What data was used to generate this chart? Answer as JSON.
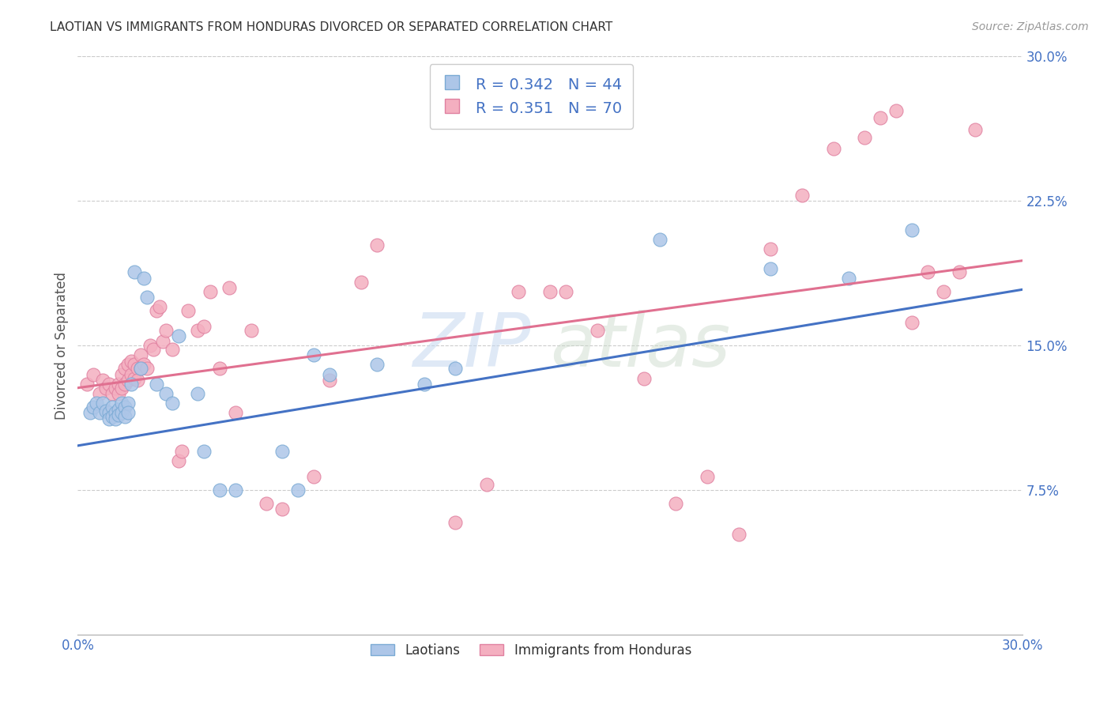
{
  "title": "LAOTIAN VS IMMIGRANTS FROM HONDURAS DIVORCED OR SEPARATED CORRELATION CHART",
  "source": "Source: ZipAtlas.com",
  "ylabel": "Divorced or Separated",
  "xlim": [
    0.0,
    0.3
  ],
  "ylim": [
    0.0,
    0.3
  ],
  "yticks": [
    0.075,
    0.15,
    0.225,
    0.3
  ],
  "laotian_color": "#adc6e8",
  "laotian_edge": "#7aaad4",
  "honduras_color": "#f4afc0",
  "honduras_edge": "#e080a0",
  "trend_laotian": "#4472c4",
  "trend_honduras": "#e07090",
  "R_laotian": 0.342,
  "N_laotian": 44,
  "R_honduras": 0.351,
  "N_honduras": 70,
  "watermark_zip": "ZIP",
  "watermark_atlas": "atlas",
  "background_color": "#ffffff",
  "grid_color": "#cccccc",
  "lao_intercept": 0.098,
  "lao_slope": 0.27,
  "hon_intercept": 0.128,
  "hon_slope": 0.22,
  "laotian_x": [
    0.004,
    0.005,
    0.006,
    0.007,
    0.008,
    0.009,
    0.01,
    0.01,
    0.011,
    0.011,
    0.012,
    0.012,
    0.013,
    0.013,
    0.014,
    0.014,
    0.015,
    0.015,
    0.016,
    0.016,
    0.017,
    0.018,
    0.02,
    0.021,
    0.022,
    0.025,
    0.028,
    0.03,
    0.032,
    0.038,
    0.04,
    0.045,
    0.05,
    0.065,
    0.07,
    0.075,
    0.08,
    0.095,
    0.11,
    0.12,
    0.185,
    0.22,
    0.245,
    0.265
  ],
  "laotian_y": [
    0.115,
    0.118,
    0.12,
    0.115,
    0.12,
    0.116,
    0.115,
    0.112,
    0.118,
    0.113,
    0.115,
    0.112,
    0.117,
    0.114,
    0.12,
    0.115,
    0.118,
    0.113,
    0.12,
    0.115,
    0.13,
    0.188,
    0.138,
    0.185,
    0.175,
    0.13,
    0.125,
    0.12,
    0.155,
    0.125,
    0.095,
    0.075,
    0.075,
    0.095,
    0.075,
    0.145,
    0.135,
    0.14,
    0.13,
    0.138,
    0.205,
    0.19,
    0.185,
    0.21
  ],
  "honduras_x": [
    0.003,
    0.005,
    0.007,
    0.008,
    0.009,
    0.01,
    0.011,
    0.012,
    0.013,
    0.013,
    0.014,
    0.014,
    0.015,
    0.015,
    0.016,
    0.016,
    0.017,
    0.017,
    0.018,
    0.018,
    0.019,
    0.019,
    0.02,
    0.02,
    0.021,
    0.022,
    0.023,
    0.024,
    0.025,
    0.026,
    0.027,
    0.028,
    0.03,
    0.032,
    0.033,
    0.035,
    0.038,
    0.04,
    0.042,
    0.045,
    0.048,
    0.05,
    0.055,
    0.06,
    0.065,
    0.075,
    0.08,
    0.09,
    0.095,
    0.12,
    0.13,
    0.14,
    0.15,
    0.155,
    0.165,
    0.18,
    0.19,
    0.2,
    0.21,
    0.22,
    0.23,
    0.24,
    0.25,
    0.255,
    0.26,
    0.265,
    0.27,
    0.275,
    0.28,
    0.285
  ],
  "honduras_y": [
    0.13,
    0.135,
    0.125,
    0.132,
    0.128,
    0.13,
    0.125,
    0.128,
    0.13,
    0.125,
    0.135,
    0.128,
    0.138,
    0.13,
    0.14,
    0.132,
    0.142,
    0.135,
    0.14,
    0.133,
    0.138,
    0.132,
    0.145,
    0.138,
    0.14,
    0.138,
    0.15,
    0.148,
    0.168,
    0.17,
    0.152,
    0.158,
    0.148,
    0.09,
    0.095,
    0.168,
    0.158,
    0.16,
    0.178,
    0.138,
    0.18,
    0.115,
    0.158,
    0.068,
    0.065,
    0.082,
    0.132,
    0.183,
    0.202,
    0.058,
    0.078,
    0.178,
    0.178,
    0.178,
    0.158,
    0.133,
    0.068,
    0.082,
    0.052,
    0.2,
    0.228,
    0.252,
    0.258,
    0.268,
    0.272,
    0.162,
    0.188,
    0.178,
    0.188,
    0.262
  ]
}
